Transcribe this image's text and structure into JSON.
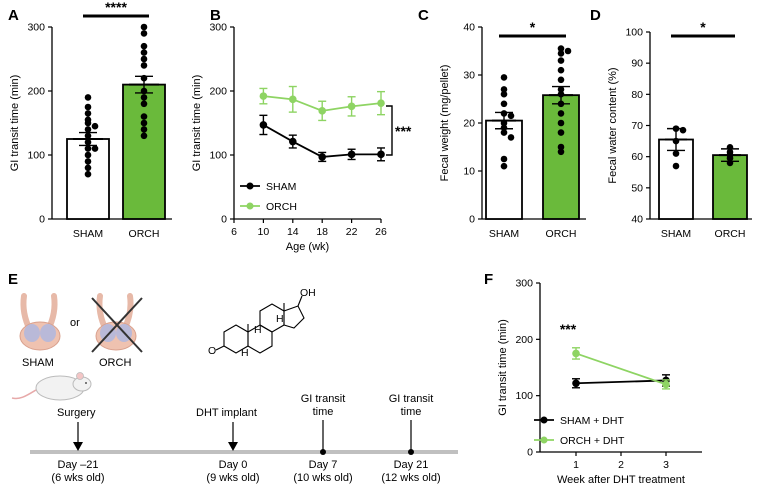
{
  "colors": {
    "green": "#6aba3b",
    "light_green": "#8ed463",
    "black": "#000000",
    "timeline_gray": "#c0c0c0"
  },
  "chart_data": [
    {
      "panel": "A",
      "type": "bar",
      "categories": [
        "SHAM",
        "ORCH"
      ],
      "values": [
        125,
        210
      ],
      "errors": [
        10,
        13
      ],
      "points": [
        [
          190,
          175,
          165,
          155,
          150,
          145,
          140,
          130,
          120,
          110,
          100,
          90,
          80,
          70,
          110
        ],
        [
          300,
          290,
          270,
          260,
          250,
          240,
          220,
          200,
          190,
          180,
          160,
          150,
          140,
          130
        ]
      ],
      "ylabel": "GI transit time (min)",
      "ylim": [
        0,
        300
      ],
      "yticks": [
        0,
        100,
        200,
        300
      ],
      "significance": "****"
    },
    {
      "panel": "B",
      "type": "line",
      "x": [
        10,
        14,
        18,
        22,
        26
      ],
      "series": [
        {
          "name": "SHAM",
          "values": [
            147,
            121,
            97,
            101,
            101
          ],
          "errors": [
            15,
            10,
            7,
            8,
            10
          ]
        },
        {
          "name": "ORCH",
          "values": [
            192,
            187,
            169,
            176,
            181
          ],
          "errors": [
            12,
            20,
            15,
            15,
            18
          ]
        }
      ],
      "xlabel": "Age (wk)",
      "ylabel": "GI transit time (min)",
      "xlim": [
        6,
        26
      ],
      "xticks": [
        6,
        10,
        14,
        18,
        22,
        26
      ],
      "ylim": [
        0,
        300
      ],
      "yticks": [
        0,
        100,
        200,
        300
      ],
      "significance": "***"
    },
    {
      "panel": "C",
      "type": "bar",
      "categories": [
        "SHAM",
        "ORCH"
      ],
      "values": [
        20.5,
        25.8
      ],
      "errors": [
        1.7,
        1.8
      ],
      "points": [
        [
          29.5,
          27,
          26,
          24,
          22,
          21.5,
          20,
          19,
          18,
          17,
          12.5,
          11
        ],
        [
          35.5,
          35,
          34.5,
          33,
          31,
          29,
          27,
          26,
          24,
          22,
          20,
          18,
          15,
          14
        ]
      ],
      "ylabel": "Fecal weight (mg/pellet)",
      "ylim": [
        0,
        40
      ],
      "yticks": [
        0,
        10,
        20,
        30,
        40
      ],
      "significance": "*"
    },
    {
      "panel": "D",
      "type": "bar",
      "categories": [
        "SHAM",
        "ORCH"
      ],
      "values": [
        65.5,
        60.5
      ],
      "errors": [
        3.5,
        2
      ],
      "points": [
        [
          69,
          68.5,
          65,
          61,
          57
        ],
        [
          63,
          61.5,
          60.5,
          59.5,
          58
        ]
      ],
      "ylabel": "Fecal water content (%)",
      "ylim": [
        40,
        100
      ],
      "yticks": [
        40,
        50,
        60,
        70,
        80,
        90,
        100
      ],
      "significance": "*"
    },
    {
      "panel": "F",
      "type": "line",
      "x": [
        1,
        3
      ],
      "series": [
        {
          "name": "SHAM + DHT",
          "values": [
            122,
            127
          ],
          "errors": [
            8,
            10
          ]
        },
        {
          "name": "ORCH + DHT",
          "values": [
            175,
            120
          ],
          "errors": [
            10,
            8
          ]
        }
      ],
      "xlabel": "Week after DHT treatment",
      "ylabel": "GI transit time (min)",
      "xlim": [
        0.2,
        3.8
      ],
      "xticks": [
        1,
        2,
        3
      ],
      "ylim": [
        0,
        300
      ],
      "yticks": [
        0,
        100,
        200,
        300
      ],
      "significance": "***"
    }
  ],
  "panel_e": {
    "sham_label": "SHAM",
    "or_label": "or",
    "orch_label": "ORCH",
    "steroid_o1": "O",
    "steroid_o2": "OH",
    "steroid_h1": "H",
    "steroid_h2": "H",
    "steroid_h3": "H",
    "events": [
      {
        "title": "Surgery",
        "day": "Day –21",
        "age": "(6 wks old)"
      },
      {
        "title": "DHT implant",
        "day": "Day 0",
        "age": "(9 wks old)"
      },
      {
        "title1": "GI transit",
        "title2": "time",
        "day": "Day 7",
        "age": "(10 wks old)"
      },
      {
        "title1": "GI transit",
        "title2": "time",
        "day": "Day 21",
        "age": "(12 wks old)"
      }
    ]
  },
  "labels": {
    "A": "A",
    "B": "B",
    "C": "C",
    "D": "D",
    "E": "E",
    "F": "F"
  }
}
